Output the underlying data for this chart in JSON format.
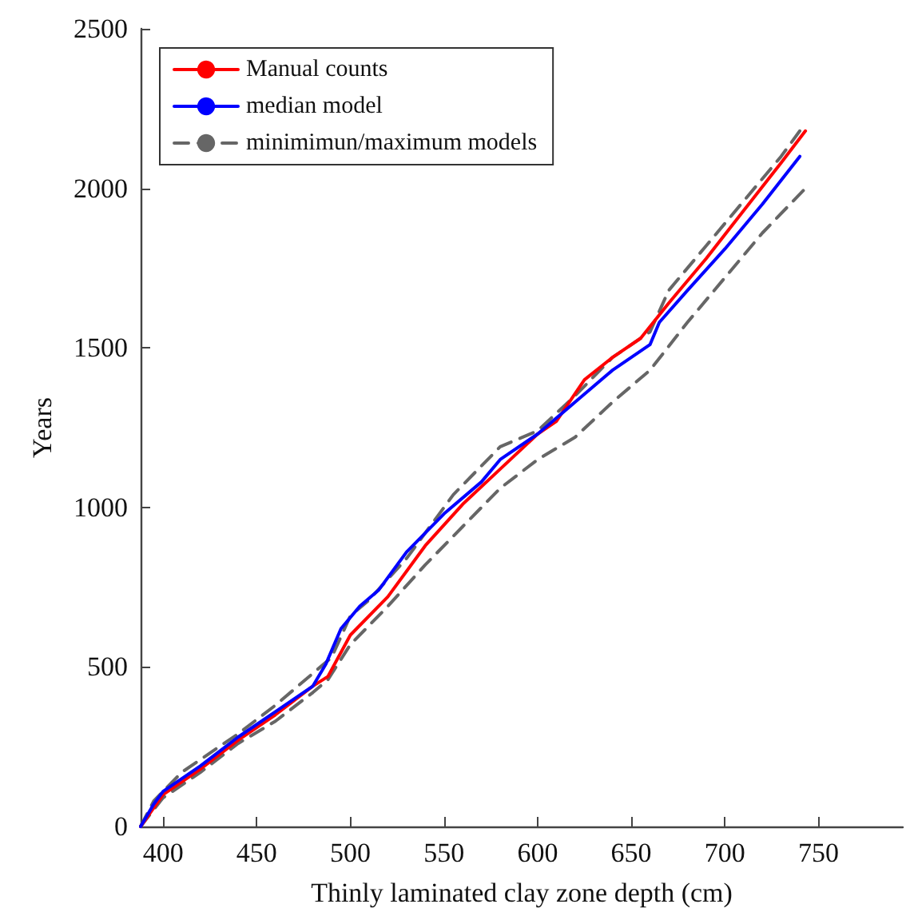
{
  "chart_data": {
    "type": "line",
    "xlabel": "Thinly laminated clay zone depth (cm)",
    "ylabel": "Years",
    "xlim": [
      388,
      795
    ],
    "xticks": [
      400,
      450,
      500,
      550,
      600,
      650,
      700,
      750
    ],
    "ylim": [
      0,
      2500
    ],
    "yticks": [
      0,
      500,
      1000,
      1500,
      2000,
      2500
    ],
    "grid": false,
    "legend": "top left",
    "marker": "none",
    "series": [
      {
        "name": "Manual counts",
        "color": "#ff0000",
        "line_style": "solid",
        "x": [
          388,
          400,
          420,
          440,
          460,
          480,
          488,
          500,
          520,
          540,
          560,
          580,
          600,
          610,
          625,
          640,
          655,
          670,
          690,
          710,
          730,
          743
        ],
        "values": [
          0,
          100,
          180,
          270,
          350,
          440,
          470,
          600,
          720,
          880,
          1010,
          1120,
          1230,
          1270,
          1400,
          1470,
          1530,
          1640,
          1780,
          1930,
          2080,
          2180
        ]
      },
      {
        "name": "median model",
        "color": "#0000ff",
        "line_style": "solid",
        "x": [
          388,
          395,
          400,
          410,
          420,
          440,
          460,
          480,
          487,
          495,
          505,
          515,
          530,
          550,
          570,
          580,
          600,
          620,
          640,
          660,
          665,
          680,
          700,
          720,
          740
        ],
        "values": [
          0,
          70,
          110,
          150,
          190,
          280,
          360,
          440,
          510,
          620,
          690,
          740,
          860,
          980,
          1080,
          1150,
          1230,
          1330,
          1430,
          1510,
          1580,
          1680,
          1810,
          1950,
          2100
        ]
      },
      {
        "name": "minimimun/maximum models",
        "color": "#666666",
        "line_style": "dashed",
        "x": [
          388,
          395,
          410,
          440,
          460,
          480,
          490,
          500,
          510,
          530,
          555,
          580,
          600,
          620,
          640,
          660,
          670,
          690,
          710,
          730,
          740
        ],
        "values": [
          0,
          80,
          170,
          290,
          380,
          480,
          530,
          660,
          710,
          840,
          1040,
          1190,
          1240,
          1350,
          1470,
          1550,
          1680,
          1820,
          1960,
          2100,
          2180
        ]
      },
      {
        "color": "#666666",
        "line_style": "dashed",
        "x": [
          388,
          400,
          420,
          440,
          460,
          480,
          488,
          500,
          520,
          540,
          560,
          580,
          600,
          620,
          640,
          660,
          680,
          700,
          720,
          743
        ],
        "values": [
          0,
          90,
          170,
          260,
          330,
          420,
          460,
          570,
          690,
          820,
          940,
          1060,
          1150,
          1220,
          1330,
          1430,
          1580,
          1720,
          1860,
          2000
        ]
      }
    ]
  }
}
